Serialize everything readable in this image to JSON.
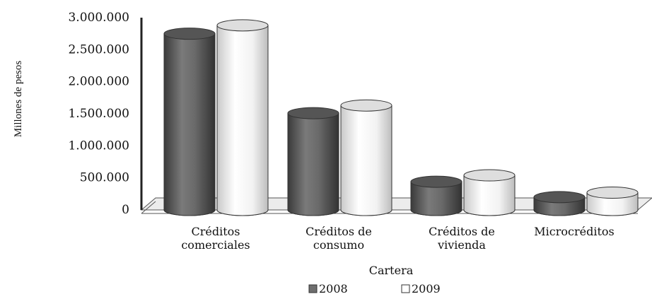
{
  "chart_data": {
    "type": "bar",
    "style": "3d-cylinder",
    "categories": [
      [
        "Créditos",
        "comerciales"
      ],
      [
        "Créditos de",
        "consumo"
      ],
      [
        "Créditos de",
        "vivienda"
      ],
      [
        "Microcréditos"
      ]
    ],
    "series": [
      {
        "name": "2008",
        "color": "#6e6e6e",
        "values": [
          2750000,
          1510000,
          440000,
          200000
        ]
      },
      {
        "name": "2009",
        "color": "#f7f7f7",
        "values": [
          2880000,
          1630000,
          540000,
          270000
        ]
      }
    ],
    "yticks": [
      "3.000.000",
      "2.500.000",
      "2.000.000",
      "1.500.000",
      "1.000.000",
      "500.000",
      "0"
    ],
    "ylim": [
      0,
      3000000
    ],
    "ylabel": "Millones de pesos",
    "xlabel": "Cartera",
    "legend_position": "bottom",
    "grid": false
  }
}
